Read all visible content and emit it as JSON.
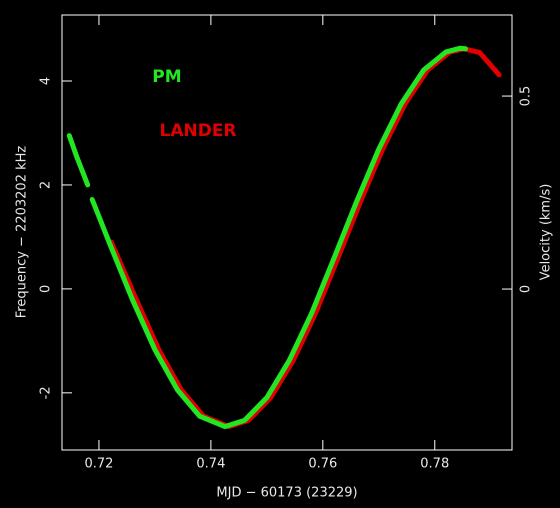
{
  "chart_data": {
    "type": "line",
    "xlabel": "MJD − 60173 (23229)",
    "ylabel": "Frequency − 2203202 kHz",
    "y2label": "Velocity (km/s)",
    "xlim": [
      0.7134,
      0.7938
    ],
    "xticks": [
      0.72,
      0.74,
      0.76,
      0.78
    ],
    "ylim": [
      -3.1,
      5.27
    ],
    "yticks": [
      -2,
      0,
      2,
      4
    ],
    "y2lim": [
      -0.417,
      0.71
    ],
    "y2ticks": [
      0,
      0.5
    ],
    "series": [
      {
        "name": "LANDER",
        "color": "#e00000",
        "x": [
          0.7222,
          0.7267,
          0.7307,
          0.7347,
          0.7387,
          0.7432,
          0.7467,
          0.7507,
          0.7547,
          0.7587,
          0.7627,
          0.7667,
          0.7707,
          0.7747,
          0.7787,
          0.7827,
          0.7852,
          0.788,
          0.7915
        ],
        "values": [
          0.9,
          -0.21,
          -1.17,
          -1.94,
          -2.45,
          -2.65,
          -2.53,
          -2.09,
          -1.38,
          -0.47,
          0.59,
          1.67,
          2.69,
          3.56,
          4.21,
          4.56,
          4.62,
          4.55,
          4.12
        ]
      },
      {
        "name": "PM",
        "color": "#22e622",
        "x": [
          0.7147,
          0.716,
          0.718,
          0.7184,
          0.7188,
          0.722,
          0.726,
          0.73,
          0.734,
          0.738,
          0.7425,
          0.746,
          0.75,
          0.754,
          0.758,
          0.762,
          0.766,
          0.77,
          0.774,
          0.778,
          0.782,
          0.7845,
          0.7855
        ],
        "values": [
          2.95,
          2.55,
          2.0,
          null,
          1.72,
          0.85,
          -0.21,
          -1.17,
          -1.94,
          -2.45,
          -2.65,
          -2.53,
          -2.09,
          -1.38,
          -0.47,
          0.59,
          1.67,
          2.69,
          3.56,
          4.21,
          4.56,
          4.63,
          4.62
        ]
      }
    ]
  }
}
